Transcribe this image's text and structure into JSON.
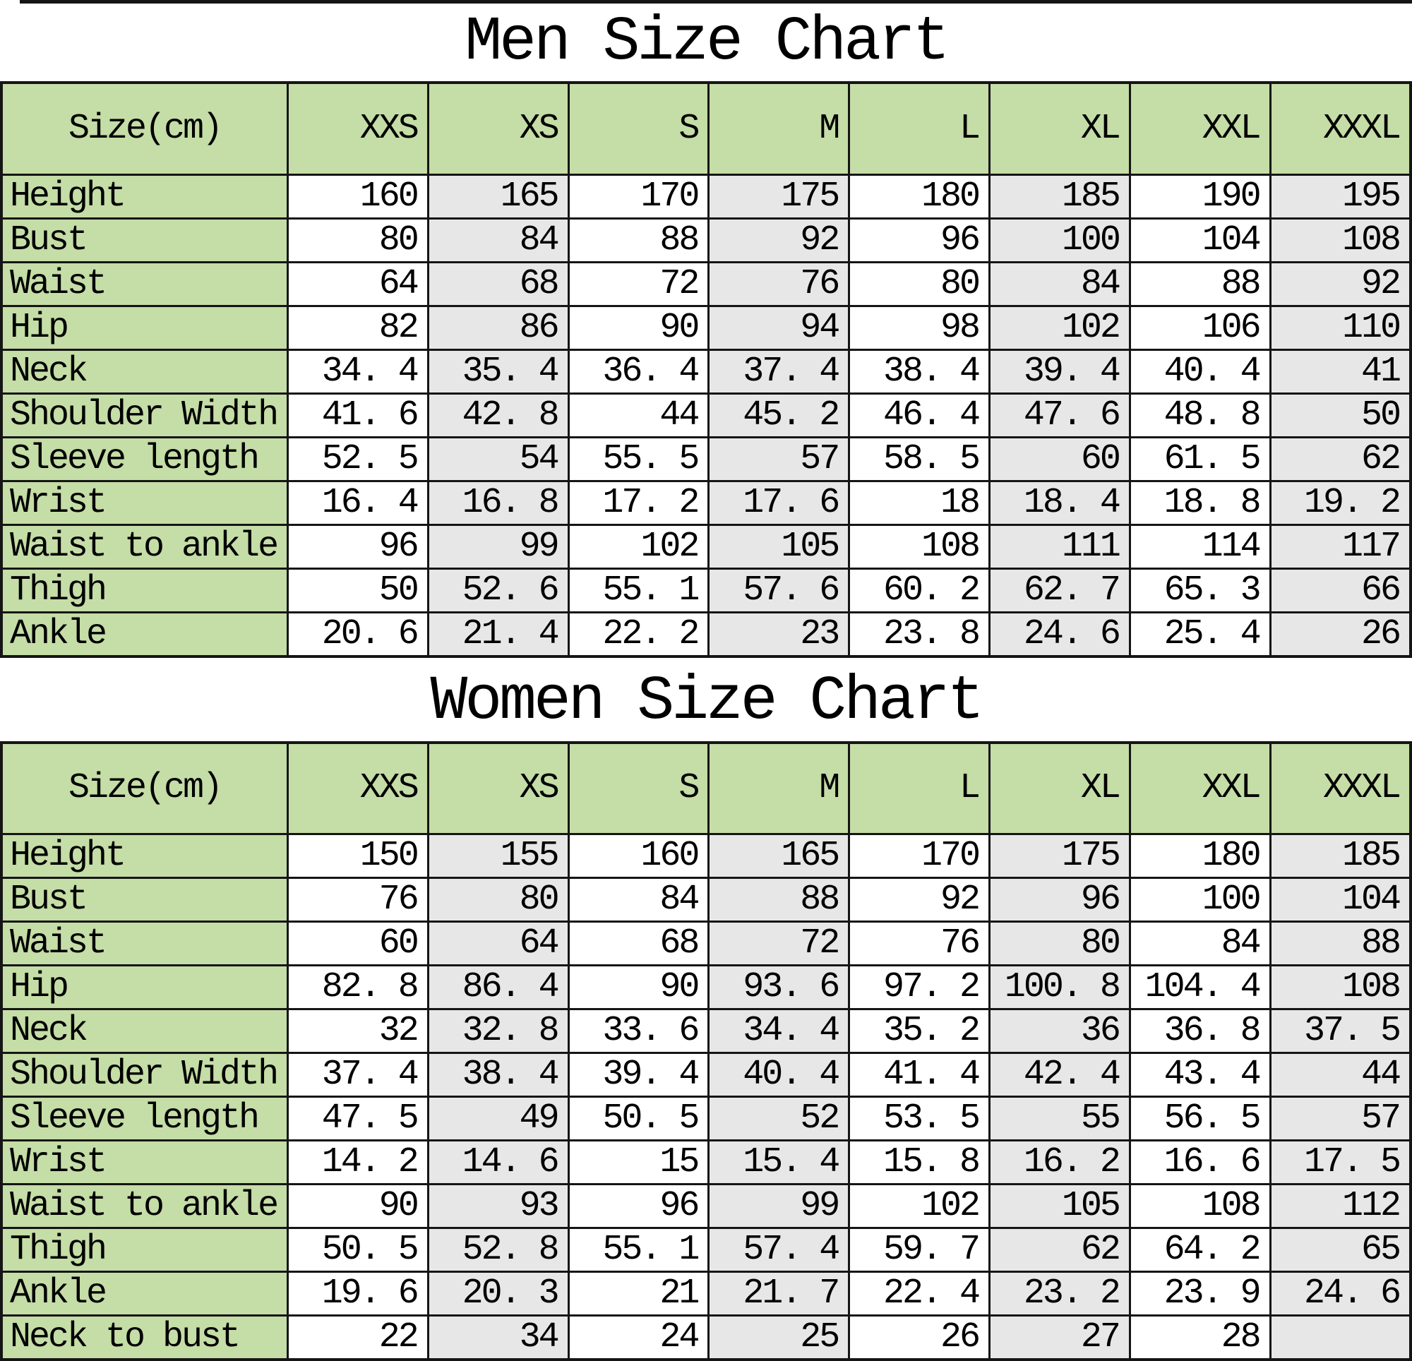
{
  "colors": {
    "header_fill": "#c5dda6",
    "stripe_fill": "#e8e7e7",
    "grid_line": "#151515",
    "text": "#000000",
    "background": "#ffffff"
  },
  "chart_data": [
    {
      "type": "table",
      "title": "Men Size Chart",
      "corner": "Size(cm)",
      "columns": [
        "XXS",
        "XS",
        "S",
        "M",
        "L",
        "XL",
        "XXL",
        "XXXL"
      ],
      "rows": [
        {
          "label": "Height",
          "values": [
            "160",
            "165",
            "170",
            "175",
            "180",
            "185",
            "190",
            "195"
          ]
        },
        {
          "label": "Bust",
          "values": [
            "80",
            "84",
            "88",
            "92",
            "96",
            "100",
            "104",
            "108"
          ]
        },
        {
          "label": "Waist",
          "values": [
            "64",
            "68",
            "72",
            "76",
            "80",
            "84",
            "88",
            "92"
          ]
        },
        {
          "label": "Hip",
          "values": [
            "82",
            "86",
            "90",
            "94",
            "98",
            "102",
            "106",
            "110"
          ]
        },
        {
          "label": "Neck",
          "values": [
            "34. 4",
            "35. 4",
            "36. 4",
            "37. 4",
            "38. 4",
            "39. 4",
            "40. 4",
            "41"
          ]
        },
        {
          "label": "Shoulder Width",
          "values": [
            "41. 6",
            "42. 8",
            "44",
            "45. 2",
            "46. 4",
            "47. 6",
            "48. 8",
            "50"
          ]
        },
        {
          "label": "Sleeve length",
          "values": [
            "52. 5",
            "54",
            "55. 5",
            "57",
            "58. 5",
            "60",
            "61. 5",
            "62"
          ]
        },
        {
          "label": "Wrist",
          "values": [
            "16. 4",
            "16. 8",
            "17. 2",
            "17. 6",
            "18",
            "18. 4",
            "18. 8",
            "19. 2"
          ]
        },
        {
          "label": "Waist to ankle",
          "values": [
            "96",
            "99",
            "102",
            "105",
            "108",
            "111",
            "114",
            "117"
          ]
        },
        {
          "label": "Thigh",
          "values": [
            "50",
            "52. 6",
            "55. 1",
            "57. 6",
            "60. 2",
            "62. 7",
            "65. 3",
            "66"
          ]
        },
        {
          "label": "Ankle",
          "values": [
            "20. 6",
            "21. 4",
            "22. 2",
            "23",
            "23. 8",
            "24. 6",
            "25. 4",
            "26"
          ]
        }
      ]
    },
    {
      "type": "table",
      "title": "Women Size Chart",
      "corner": "Size(cm)",
      "columns": [
        "XXS",
        "XS",
        "S",
        "M",
        "L",
        "XL",
        "XXL",
        "XXXL"
      ],
      "rows": [
        {
          "label": "Height",
          "values": [
            "150",
            "155",
            "160",
            "165",
            "170",
            "175",
            "180",
            "185"
          ]
        },
        {
          "label": "Bust",
          "values": [
            "76",
            "80",
            "84",
            "88",
            "92",
            "96",
            "100",
            "104"
          ]
        },
        {
          "label": "Waist",
          "values": [
            "60",
            "64",
            "68",
            "72",
            "76",
            "80",
            "84",
            "88"
          ]
        },
        {
          "label": "Hip",
          "values": [
            "82. 8",
            "86. 4",
            "90",
            "93. 6",
            "97. 2",
            "100. 8",
            "104. 4",
            "108"
          ]
        },
        {
          "label": "Neck",
          "values": [
            "32",
            "32. 8",
            "33. 6",
            "34. 4",
            "35. 2",
            "36",
            "36. 8",
            "37. 5"
          ]
        },
        {
          "label": "Shoulder Width",
          "values": [
            "37. 4",
            "38. 4",
            "39. 4",
            "40. 4",
            "41. 4",
            "42. 4",
            "43. 4",
            "44"
          ]
        },
        {
          "label": "Sleeve length",
          "values": [
            "47. 5",
            "49",
            "50. 5",
            "52",
            "53. 5",
            "55",
            "56. 5",
            "57"
          ]
        },
        {
          "label": "Wrist",
          "values": [
            "14. 2",
            "14. 6",
            "15",
            "15. 4",
            "15. 8",
            "16. 2",
            "16. 6",
            "17. 5"
          ]
        },
        {
          "label": "Waist to ankle",
          "values": [
            "90",
            "93",
            "96",
            "99",
            "102",
            "105",
            "108",
            "112"
          ]
        },
        {
          "label": "Thigh",
          "values": [
            "50. 5",
            "52. 8",
            "55. 1",
            "57. 4",
            "59. 7",
            "62",
            "64. 2",
            "65"
          ]
        },
        {
          "label": "Ankle",
          "values": [
            "19. 6",
            "20. 3",
            "21",
            "21. 7",
            "22. 4",
            "23. 2",
            "23. 9",
            "24. 6"
          ]
        },
        {
          "label": "Neck to bust",
          "values": [
            "22",
            "34",
            "24",
            "25",
            "26",
            "27",
            "28",
            ""
          ]
        }
      ]
    }
  ]
}
